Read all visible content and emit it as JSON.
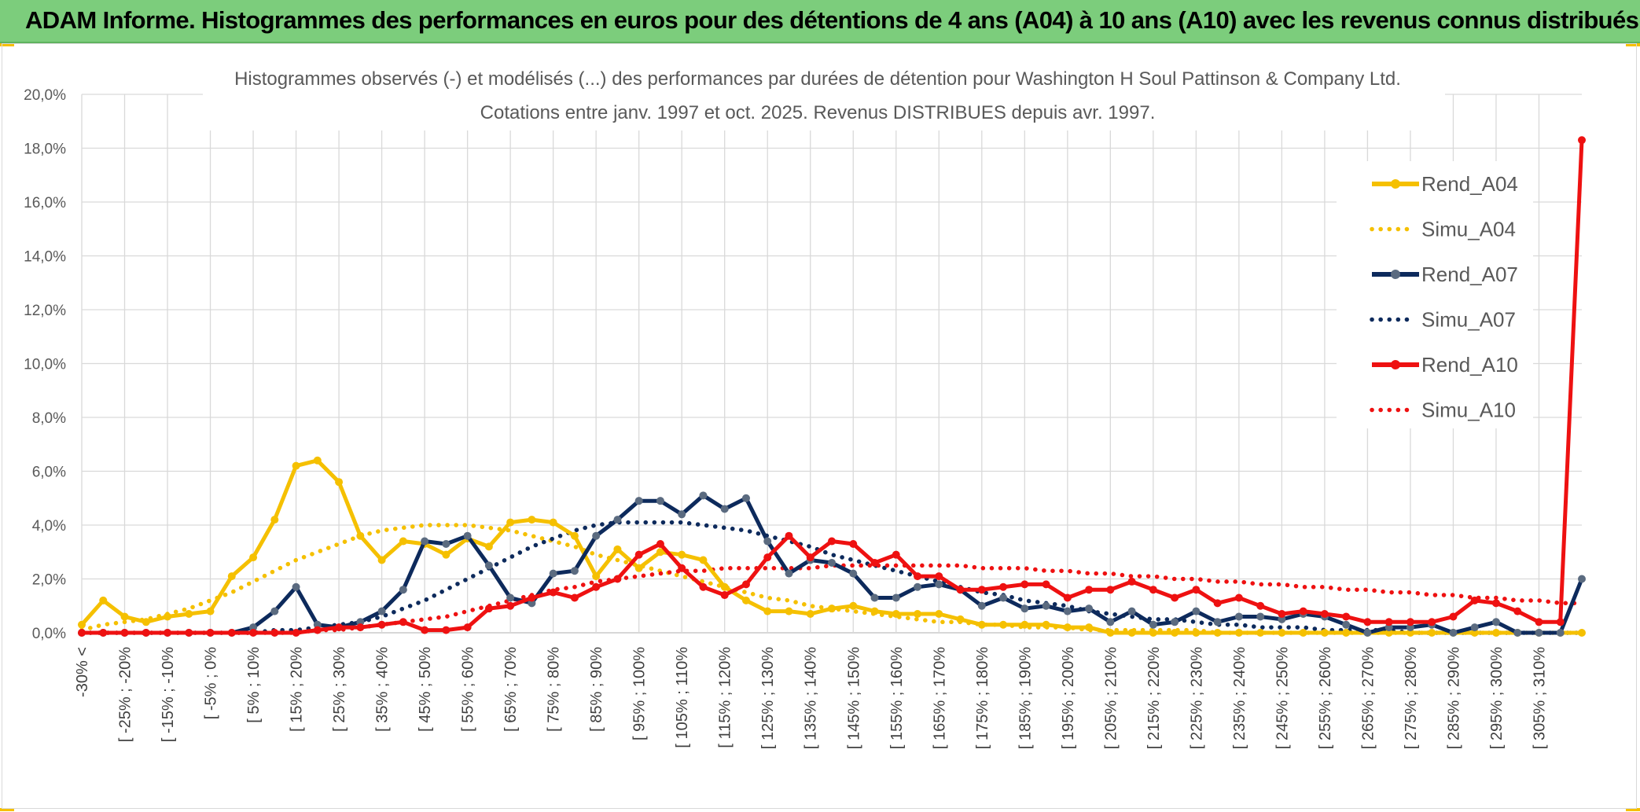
{
  "header": {
    "title": "ADAM Informe. Histogrammes des performances en euros pour des détentions de 4 ans (A04) à 10 ans (A10) avec les revenus connus distribués"
  },
  "colors": {
    "header_bg": "#7ccd7c",
    "A04": "#f5c000",
    "A07": "#0d2a5c",
    "A10": "#ee1111",
    "marker_A07": "#5b6b80"
  },
  "chart_data": {
    "type": "line",
    "title": "Histogrammes observés (-) et modélisés (...) des performances par durées de détention pour Washington H Soul Pattinson & Company Ltd.",
    "subtitle": "Cotations entre janv. 1997 et oct. 2025. Revenus DISTRIBUES depuis avr. 1997.",
    "ylim": [
      0,
      20
    ],
    "y_ticks": [
      "0,0%",
      "2,0%",
      "4,0%",
      "6,0%",
      "8,0%",
      "10,0%",
      "12,0%",
      "14,0%",
      "16,0%",
      "18,0%",
      "20,0%"
    ],
    "grid": true,
    "legend_position": "right",
    "x_labels": [
      "-30% <",
      "[ -25% ; -20%",
      "[ -15% ; -10%",
      "[ -5% ; 0%",
      "[ 5% ; 10%",
      "[ 15% ; 20%",
      "[ 25% ; 30%",
      "[ 35% ; 40%",
      "[ 45% ; 50%",
      "[ 55% ; 60%",
      "[ 65% ; 70%",
      "[ 75% ; 80%",
      "[ 85% ; 90%",
      "[ 95% ; 100%",
      "[ 105% ; 110%",
      "[ 115% ; 120%",
      "[ 125% ; 130%",
      "[ 135% ; 140%",
      "[ 145% ; 150%",
      "[ 155% ; 160%",
      "[ 165% ; 170%",
      "[ 175% ; 180%",
      "[ 185% ; 190%",
      "[ 195% ; 200%",
      "[ 205% ; 210%",
      "[ 215% ; 220%",
      "[ 225% ; 230%",
      "[ 235% ; 240%",
      "[ 245% ; 250%",
      "[ 255% ; 260%",
      "[ 265% ; 270%",
      "[ 275% ; 280%",
      "[ 285% ; 290%",
      "[ 295% ; 300%",
      "[ 305% ; 310%"
    ],
    "series": [
      {
        "name": "Rend_A04",
        "style": "solid",
        "values": [
          0.3,
          1.2,
          0.6,
          0.4,
          0.6,
          0.7,
          0.8,
          2.1,
          2.8,
          4.2,
          6.2,
          6.4,
          5.6,
          3.6,
          2.7,
          3.4,
          3.3,
          2.9,
          3.5,
          3.2,
          4.1,
          4.2,
          4.1,
          3.6,
          2.1,
          3.1,
          2.4,
          3.0,
          2.9,
          2.7,
          1.7,
          1.2,
          0.8,
          0.8,
          0.7,
          0.9,
          1.0,
          0.8,
          0.7,
          0.7,
          0.7,
          0.5,
          0.3,
          0.3,
          0.3,
          0.3,
          0.2,
          0.2,
          0.0,
          0.0,
          0.0,
          0.0,
          0.0,
          0.0,
          0.0,
          0.0,
          0.0,
          0.0,
          0.0,
          0.0,
          0.0,
          0.0,
          0.0,
          0.0,
          0.0,
          0.0,
          0.0,
          0.0,
          0.0,
          0.0,
          0.0
        ]
      },
      {
        "name": "Simu_A04",
        "style": "dotted",
        "values": [
          0.1,
          0.3,
          0.4,
          0.5,
          0.7,
          0.9,
          1.2,
          1.5,
          1.9,
          2.3,
          2.7,
          3.0,
          3.3,
          3.6,
          3.8,
          3.9,
          4.0,
          4.0,
          4.0,
          3.9,
          3.8,
          3.6,
          3.4,
          3.2,
          2.9,
          2.7,
          2.5,
          2.3,
          2.1,
          1.9,
          1.7,
          1.5,
          1.3,
          1.2,
          1.0,
          0.9,
          0.8,
          0.7,
          0.6,
          0.5,
          0.4,
          0.4,
          0.3,
          0.3,
          0.2,
          0.2,
          0.2,
          0.1,
          0.1,
          0.1,
          0.1,
          0.1,
          0.1,
          0.0,
          0.0,
          0.0,
          0.0,
          0.0,
          0.0,
          0.0,
          0.0,
          0.0,
          0.0,
          0.0,
          0.0,
          0.0,
          0.0,
          0.0,
          0.0,
          0.0,
          0.0
        ]
      },
      {
        "name": "Rend_A07",
        "style": "solid",
        "values": [
          0.0,
          0.0,
          0.0,
          0.0,
          0.0,
          0.0,
          0.0,
          0.0,
          0.2,
          0.8,
          1.7,
          0.3,
          0.2,
          0.4,
          0.8,
          1.6,
          3.4,
          3.3,
          3.6,
          2.5,
          1.3,
          1.1,
          2.2,
          2.3,
          3.6,
          4.2,
          4.9,
          4.9,
          4.4,
          5.1,
          4.6,
          5.0,
          3.4,
          2.2,
          2.7,
          2.6,
          2.2,
          1.3,
          1.3,
          1.7,
          1.8,
          1.6,
          1.0,
          1.3,
          0.9,
          1.0,
          0.8,
          0.9,
          0.4,
          0.8,
          0.3,
          0.4,
          0.8,
          0.4,
          0.6,
          0.6,
          0.5,
          0.7,
          0.6,
          0.3,
          0.0,
          0.2,
          0.2,
          0.3,
          0.0,
          0.2,
          0.4,
          0.0,
          0.0,
          0.0,
          2.0
        ]
      },
      {
        "name": "Simu_A07",
        "style": "dotted",
        "values": [
          0.0,
          0.0,
          0.0,
          0.0,
          0.0,
          0.0,
          0.0,
          0.0,
          0.0,
          0.1,
          0.1,
          0.2,
          0.3,
          0.4,
          0.6,
          0.9,
          1.2,
          1.6,
          2.0,
          2.4,
          2.8,
          3.2,
          3.5,
          3.8,
          4.0,
          4.1,
          4.1,
          4.1,
          4.1,
          4.0,
          3.9,
          3.8,
          3.6,
          3.4,
          3.2,
          2.9,
          2.7,
          2.5,
          2.3,
          2.1,
          1.9,
          1.7,
          1.5,
          1.4,
          1.2,
          1.1,
          1.0,
          0.8,
          0.7,
          0.6,
          0.5,
          0.5,
          0.4,
          0.3,
          0.3,
          0.2,
          0.2,
          0.2,
          0.1,
          0.1,
          0.1,
          0.1,
          0.0,
          0.0,
          0.0,
          0.0,
          0.0,
          0.0,
          0.0,
          0.0,
          0.0
        ]
      },
      {
        "name": "Rend_A10",
        "style": "solid",
        "values": [
          0.0,
          0.0,
          0.0,
          0.0,
          0.0,
          0.0,
          0.0,
          0.0,
          0.0,
          0.0,
          0.0,
          0.1,
          0.2,
          0.2,
          0.3,
          0.4,
          0.1,
          0.1,
          0.2,
          0.9,
          1.0,
          1.3,
          1.5,
          1.3,
          1.7,
          2.0,
          2.9,
          3.3,
          2.4,
          1.7,
          1.4,
          1.8,
          2.8,
          3.6,
          2.8,
          3.4,
          3.3,
          2.6,
          2.9,
          2.1,
          2.1,
          1.6,
          1.6,
          1.7,
          1.8,
          1.8,
          1.3,
          1.6,
          1.6,
          1.9,
          1.6,
          1.3,
          1.6,
          1.1,
          1.3,
          1.0,
          0.7,
          0.8,
          0.7,
          0.6,
          0.4,
          0.4,
          0.4,
          0.4,
          0.6,
          1.2,
          1.1,
          0.8,
          0.4,
          0.4,
          18.3
        ]
      },
      {
        "name": "Simu_A10",
        "style": "dotted",
        "values": [
          0.0,
          0.0,
          0.0,
          0.0,
          0.0,
          0.0,
          0.0,
          0.0,
          0.0,
          0.0,
          0.0,
          0.1,
          0.1,
          0.2,
          0.3,
          0.4,
          0.5,
          0.6,
          0.8,
          1.0,
          1.2,
          1.4,
          1.6,
          1.7,
          1.9,
          2.0,
          2.1,
          2.2,
          2.3,
          2.3,
          2.4,
          2.4,
          2.4,
          2.4,
          2.4,
          2.5,
          2.5,
          2.5,
          2.5,
          2.5,
          2.5,
          2.5,
          2.4,
          2.4,
          2.4,
          2.3,
          2.3,
          2.2,
          2.2,
          2.1,
          2.1,
          2.0,
          2.0,
          1.9,
          1.9,
          1.8,
          1.8,
          1.7,
          1.7,
          1.6,
          1.6,
          1.5,
          1.5,
          1.4,
          1.4,
          1.3,
          1.3,
          1.2,
          1.2,
          1.1,
          1.1
        ]
      }
    ]
  }
}
